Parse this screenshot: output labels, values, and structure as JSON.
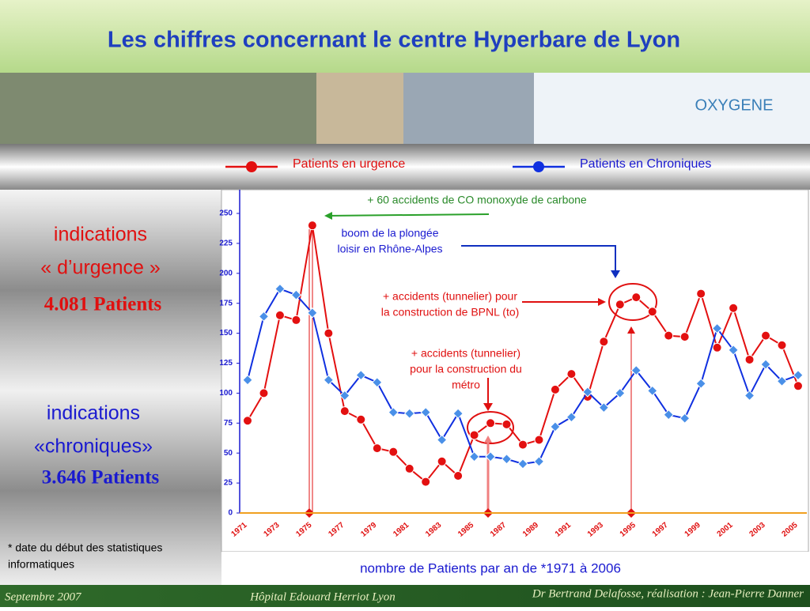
{
  "title": "Les chiffres concernant le centre Hyperbare de Lyon",
  "banner": {
    "logo": "OXYGENE"
  },
  "left_panel": {
    "urgence": [
      "indications",
      "« d’urgence »",
      "4.081 Patients"
    ],
    "chroniques": [
      "indications",
      "«chroniques»",
      "3.646 Patients"
    ],
    "footnote": [
      "* date du début des statistiques",
      "informatiques"
    ]
  },
  "footer": {
    "date": "Septembre 2007",
    "place": "Hôpital Edouard Herriot Lyon",
    "credit": "Dr Bertrand Delafosse, réalisation : Jean-Pierre Danner"
  },
  "chart_data": {
    "type": "line",
    "xlabel": "nombre de Patients par an de *1971 à 2006",
    "categories": [
      "1971",
      null,
      "1973",
      null,
      "1975",
      null,
      "1977",
      null,
      "1979",
      null,
      "1981",
      null,
      "1983",
      null,
      "1985",
      null,
      "1987",
      null,
      "1989",
      null,
      "1991",
      null,
      "1993",
      null,
      "1995",
      null,
      "1997",
      null,
      "1999",
      null,
      "2001",
      null,
      "2003",
      null,
      "2005"
    ],
    "series": [
      {
        "name": "Patients en urgence",
        "color": "#e31010",
        "values": [
          77,
          100,
          165,
          161,
          240,
          150,
          85,
          78,
          54,
          51,
          37,
          26,
          43,
          31,
          65,
          75,
          74,
          57,
          61,
          103,
          116,
          97,
          143,
          174,
          180,
          168,
          148,
          147,
          183,
          138,
          171,
          128,
          148,
          140,
          106
        ]
      },
      {
        "name": "Patients en Chroniques",
        "color": "#1030e0",
        "values": [
          111,
          164,
          187,
          182,
          167,
          111,
          98,
          115,
          109,
          84,
          83,
          84,
          61,
          83,
          47,
          47,
          45,
          41,
          43,
          72,
          80,
          101,
          88,
          100,
          119,
          102,
          82,
          79,
          108,
          154,
          136,
          98,
          124,
          110,
          115
        ]
      }
    ],
    "ylim": [
      0,
      250
    ],
    "yticks": [
      0,
      25,
      50,
      75,
      100,
      125,
      150,
      175,
      200,
      225,
      250
    ],
    "annotations": [
      [
        "+ 60 accidents de CO monoxyde de carbone"
      ],
      [
        "boom de la plongée",
        "loisir en Rhône-Alpes"
      ],
      [
        "+ accidents (tunnelier) pour",
        "la construction de BPNL (to)"
      ],
      [
        "+ accidents (tunnelier)",
        "pour la construction du",
        "métro"
      ]
    ]
  }
}
